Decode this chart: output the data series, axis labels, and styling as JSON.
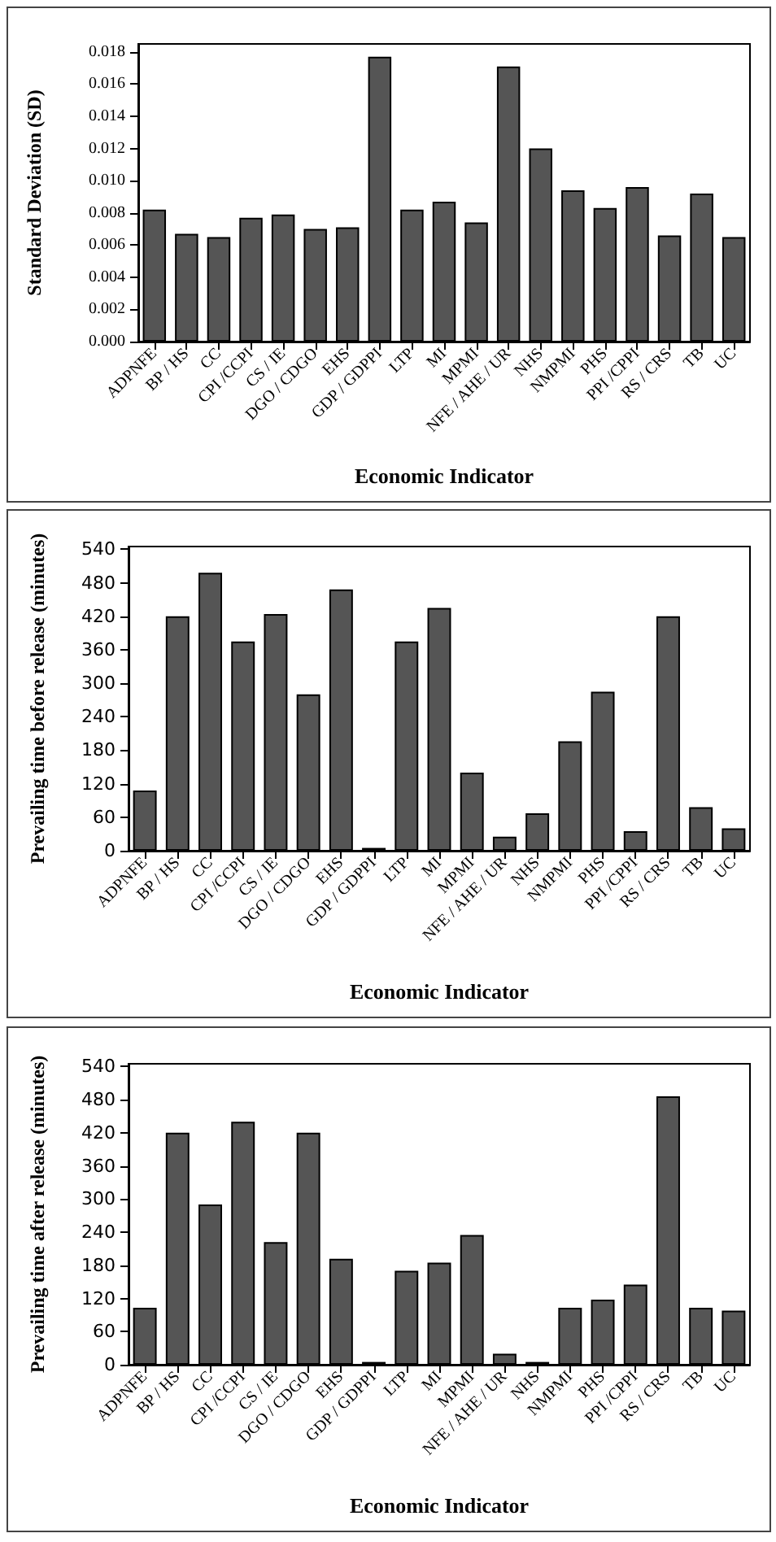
{
  "chart_data": [
    {
      "type": "bar",
      "xlabel": "Economic Indicator",
      "ylabel": "Standard Deviation (SD)",
      "categories": [
        "ADPNFE",
        "BP / HS",
        "CC",
        "CPI /CCPI",
        "CS / IE",
        "DGO / CDGO",
        "EHS",
        "GDP / GDPPI",
        "LTP",
        "MI",
        "MPMI",
        "NFE / AHE / UR",
        "NHS",
        "NMPMI",
        "PHS",
        "PPI /CPPI",
        "RS / CRS",
        "TB",
        "UC"
      ],
      "values": [
        0.0082,
        0.0067,
        0.0065,
        0.0077,
        0.0079,
        0.007,
        0.0071,
        0.0177,
        0.0082,
        0.0087,
        0.0074,
        0.0171,
        0.012,
        0.0094,
        0.0083,
        0.0096,
        0.0066,
        0.0092,
        0.0065
      ],
      "color": "#555555",
      "ylim": [
        0,
        0.0185
      ],
      "yticks": [
        {
          "value": 0,
          "label": "0.000"
        },
        {
          "value": 0.002,
          "label": "0.002"
        },
        {
          "value": 0.004,
          "label": "0.004"
        },
        {
          "value": 0.006,
          "label": "0.006"
        },
        {
          "value": 0.008,
          "label": "0.008"
        },
        {
          "value": 0.01,
          "label": "0.010"
        },
        {
          "value": 0.012,
          "label": "0.012"
        },
        {
          "value": 0.014,
          "label": "0.014"
        },
        {
          "value": 0.016,
          "label": "0.016"
        },
        {
          "value": 0.018,
          "label": "0.018"
        }
      ],
      "grid": false
    },
    {
      "type": "bar",
      "xlabel": "Economic Indicator",
      "ylabel": "Prevailing time before release (minutes)",
      "categories": [
        "ADPNFE",
        "BP / HS",
        "CC",
        "CPI /CCPI",
        "CS / IE",
        "DGO / CDGO",
        "EHS",
        "GDP / GDPPI",
        "LTP",
        "MI",
        "MPMI",
        "NFE / AHE / UR",
        "NHS",
        "NMPMI",
        "PHS",
        "PPI /CPPI",
        "RS / CRS",
        "TB",
        "UC"
      ],
      "values": [
        108,
        420,
        498,
        375,
        424,
        280,
        468,
        5,
        375,
        435,
        140,
        25,
        67,
        196,
        285,
        35,
        420,
        78,
        40
      ],
      "color": "#555555",
      "ylim": [
        0,
        545
      ],
      "yticks": [
        0,
        60,
        120,
        180,
        240,
        300,
        360,
        420,
        480,
        540
      ],
      "grid": false
    },
    {
      "type": "bar",
      "xlabel": "Economic Indicator",
      "ylabel": "Prevailing time after release (minutes)",
      "categories": [
        "ADPNFE",
        "BP / HS",
        "CC",
        "CPI /CCPI",
        "CS / IE",
        "DGO / CDGO",
        "EHS",
        "GDP / GDPPI",
        "LTP",
        "MI",
        "MPMI",
        "NFE / AHE / UR",
        "NHS",
        "NMPMI",
        "PHS",
        "PPI /CPPI",
        "RS / CRS",
        "TB",
        "UC"
      ],
      "values": [
        103,
        420,
        290,
        440,
        222,
        420,
        192,
        5,
        170,
        185,
        235,
        20,
        5,
        103,
        118,
        145,
        486,
        103,
        98
      ],
      "color": "#555555",
      "ylim": [
        0,
        545
      ],
      "yticks": [
        0,
        60,
        120,
        180,
        240,
        300,
        360,
        420,
        480,
        540
      ],
      "grid": false
    }
  ]
}
